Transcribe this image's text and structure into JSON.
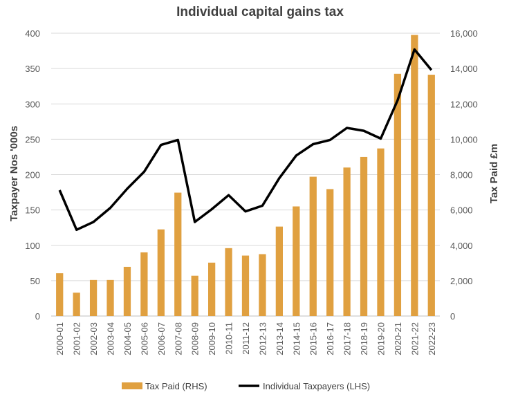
{
  "chart_data": {
    "type": "bar+line",
    "title": "Individual capital gains tax",
    "categories": [
      "2000-01",
      "2001-02",
      "2002-03",
      "2003-04",
      "2004-05",
      "2005-06",
      "2006-07",
      "2007-08",
      "2008-09",
      "2009-10",
      "2010-11",
      "2011-12",
      "2012-13",
      "2013-14",
      "2014-15",
      "2015-16",
      "2016-17",
      "2017-18",
      "2018-19",
      "2019-20",
      "2020-21",
      "2021-22",
      "2022-23"
    ],
    "series": [
      {
        "name": "Tax Paid (RHS)",
        "type": "bar",
        "axis": "right",
        "color": "#E0A040",
        "values": [
          2420,
          1320,
          2040,
          2040,
          2780,
          3600,
          4900,
          6980,
          2280,
          3020,
          3840,
          3420,
          3500,
          5060,
          6200,
          7880,
          7180,
          8400,
          9000,
          9480,
          13700,
          15900,
          13650
        ]
      },
      {
        "name": "Individual Taxpayers (LHS)",
        "type": "line",
        "axis": "left",
        "color": "#000000",
        "values": [
          178,
          122,
          133,
          153,
          180,
          204,
          242,
          249,
          133,
          151,
          171,
          148,
          156,
          195,
          227,
          243,
          249,
          266,
          262,
          251,
          305,
          377,
          348
        ]
      }
    ],
    "ylabel_left": "Taxpayer Nos '000s",
    "ylabel_right": "Tax Paid £m",
    "ylim_left": [
      0,
      400
    ],
    "ylim_right": [
      0,
      16000
    ],
    "yticks_left": [
      "0",
      "50",
      "100",
      "150",
      "200",
      "250",
      "300",
      "350",
      "400"
    ],
    "yticks_right": [
      "0",
      "2,000",
      "4,000",
      "6,000",
      "8,000",
      "10,000",
      "12,000",
      "14,000",
      "16,000"
    ],
    "grid": true,
    "legend_position": "bottom",
    "legend": [
      "Tax Paid (RHS)",
      "Individual Taxpayers (LHS)"
    ]
  }
}
